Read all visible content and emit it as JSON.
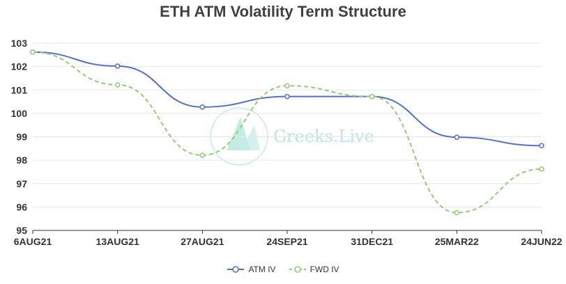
{
  "colors": {
    "atm": "#5470c6",
    "fwd": "#91cc75",
    "grid": "#e6e6e6",
    "axis": "#333333",
    "watermark": "#7fd3c7"
  },
  "watermark": {
    "text": "Greeks.Live",
    "icon": "greeks-live-logo-icon"
  },
  "chart_data": {
    "type": "line",
    "title": "ETH ATM Volatility Term Structure",
    "categories": [
      "6AUG21",
      "13AUG21",
      "27AUG21",
      "24SEP21",
      "31DEC21",
      "25MAR22",
      "24JUN22"
    ],
    "ylim": [
      95,
      103
    ],
    "yticks": [
      95,
      96,
      97,
      98,
      99,
      100,
      101,
      102,
      103
    ],
    "grid": true,
    "legend_position": "bottom-center",
    "series": [
      {
        "name": "ATM IV",
        "style": "solid",
        "values": [
          102.62,
          102.02,
          100.27,
          100.72,
          100.72,
          98.98,
          98.62
        ]
      },
      {
        "name": "FWD IV",
        "style": "dashed",
        "values": [
          102.62,
          101.22,
          98.21,
          101.18,
          100.72,
          95.76,
          97.62
        ]
      }
    ]
  }
}
